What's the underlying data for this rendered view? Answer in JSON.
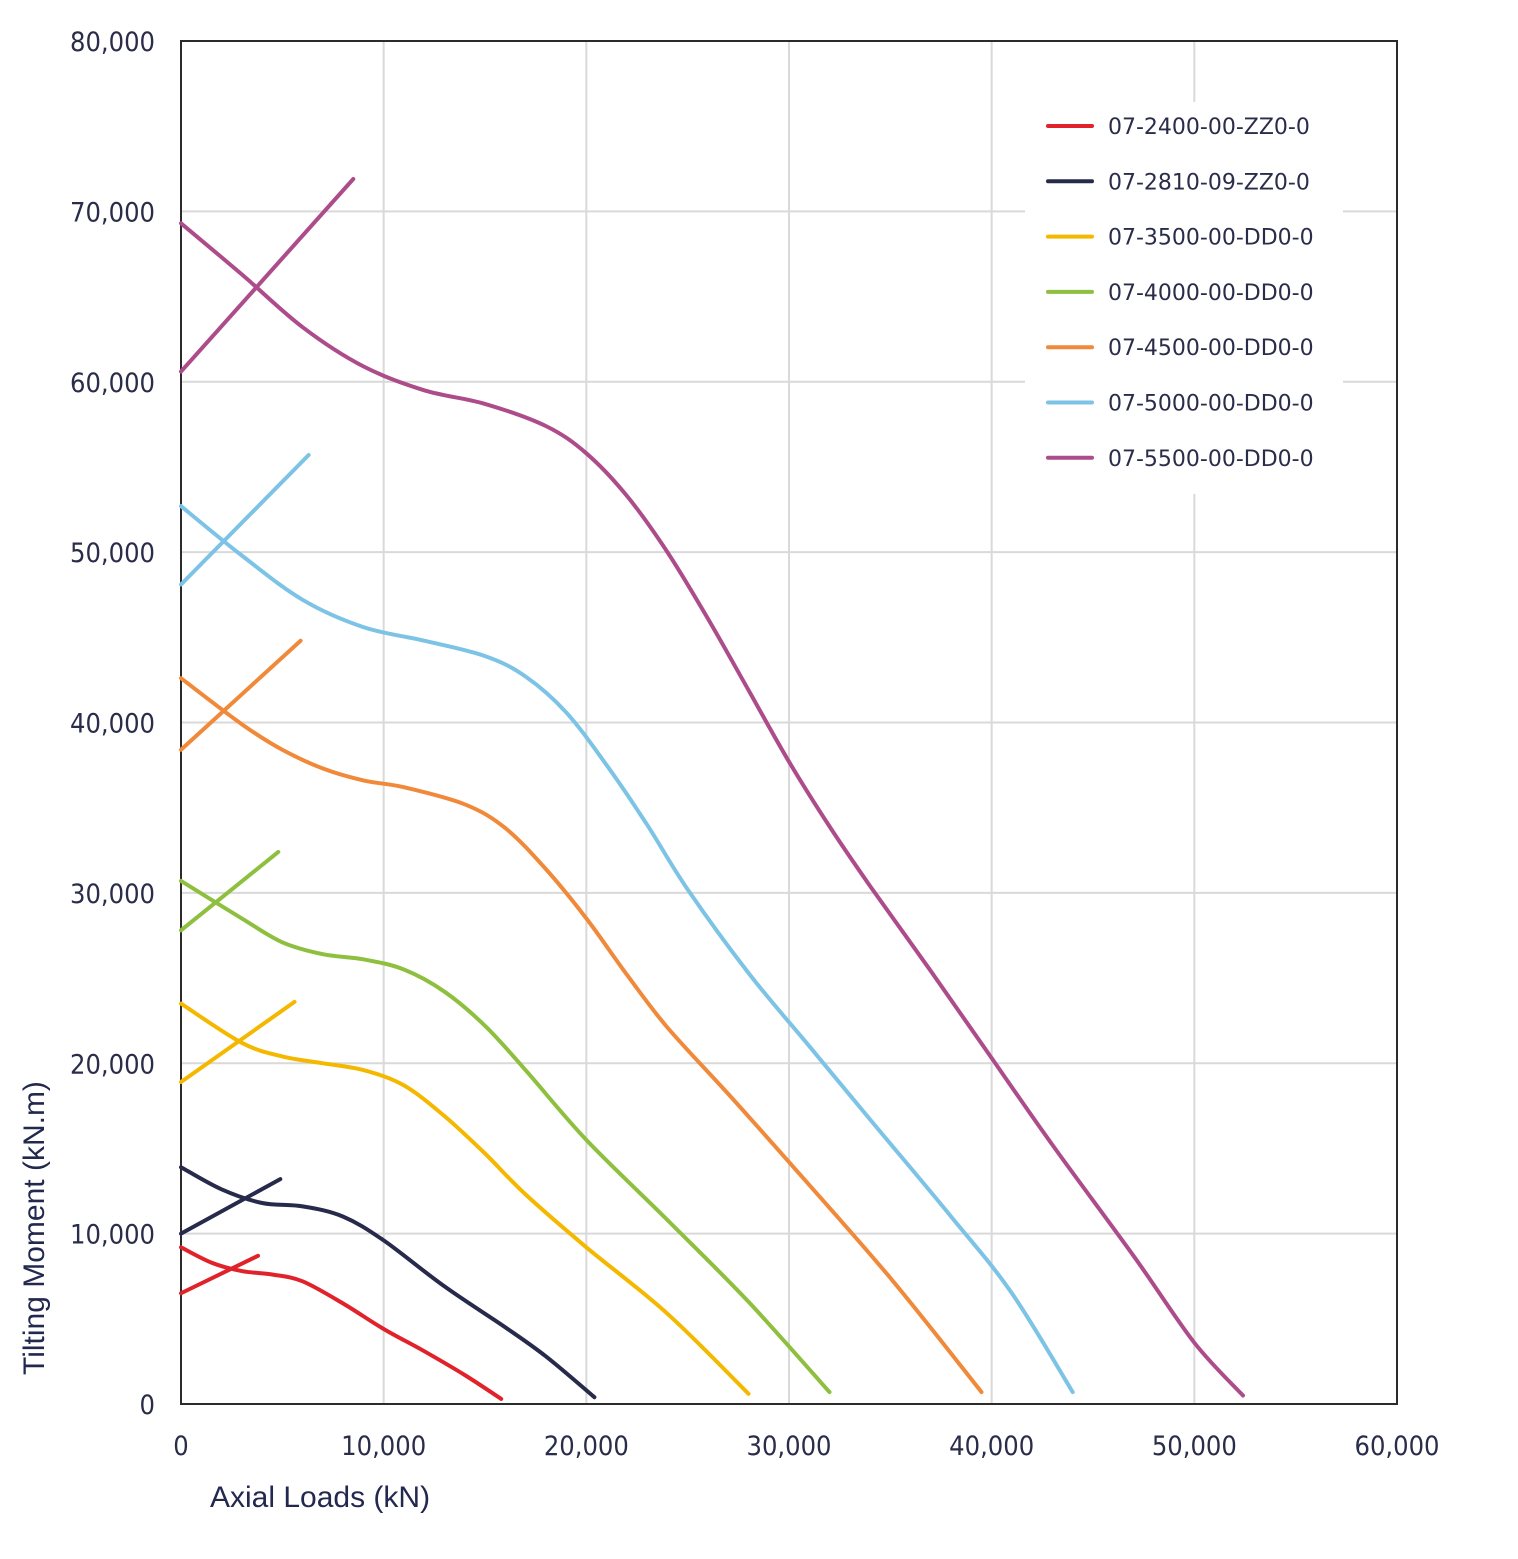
{
  "chart_data": {
    "type": "line",
    "xlabel": "Axial Loads (kN)",
    "ylabel": "Tilting Moment (kN.m)",
    "xlim": [
      0,
      60000
    ],
    "ylim": [
      0,
      80000
    ],
    "xticks": [
      0,
      10000,
      20000,
      30000,
      40000,
      50000,
      60000
    ],
    "yticks": [
      0,
      10000,
      20000,
      30000,
      40000,
      50000,
      60000,
      70000,
      80000
    ],
    "xtick_labels": [
      "0",
      "10,000",
      "20,000",
      "30,000",
      "40,000",
      "50,000",
      "60,000"
    ],
    "ytick_labels": [
      "0",
      "10,000",
      "20,000",
      "30,000",
      "40,000",
      "50,000",
      "60,000",
      "70,000",
      "80,000"
    ],
    "grid": true,
    "legend_position": "top-right",
    "series": [
      {
        "name": "07-2400-00-ZZ0-0",
        "color": "#e0232a",
        "curve": [
          [
            0,
            9200
          ],
          [
            1500,
            8300
          ],
          [
            3000,
            7800
          ],
          [
            4500,
            7600
          ],
          [
            6000,
            7200
          ],
          [
            8000,
            5900
          ],
          [
            10000,
            4400
          ],
          [
            12000,
            3100
          ],
          [
            14000,
            1700
          ],
          [
            15800,
            300
          ]
        ],
        "line": [
          [
            0,
            6500
          ],
          [
            3800,
            8700
          ]
        ]
      },
      {
        "name": "07-2810-09-ZZ0-0",
        "color": "#272a4a",
        "curve": [
          [
            0,
            13900
          ],
          [
            2000,
            12600
          ],
          [
            4000,
            11800
          ],
          [
            6000,
            11600
          ],
          [
            8000,
            11000
          ],
          [
            10000,
            9600
          ],
          [
            13000,
            6900
          ],
          [
            16000,
            4500
          ],
          [
            18000,
            2800
          ],
          [
            20400,
            400
          ]
        ],
        "line": [
          [
            0,
            10000
          ],
          [
            4900,
            13200
          ]
        ]
      },
      {
        "name": "07-3500-00-DD0-0",
        "color": "#f5b800",
        "curve": [
          [
            0,
            23500
          ],
          [
            3000,
            21200
          ],
          [
            5000,
            20400
          ],
          [
            7000,
            20000
          ],
          [
            9000,
            19600
          ],
          [
            11000,
            18700
          ],
          [
            13000,
            16900
          ],
          [
            15000,
            14700
          ],
          [
            17000,
            12300
          ],
          [
            20000,
            9200
          ],
          [
            24000,
            5300
          ],
          [
            28000,
            600
          ]
        ],
        "line": [
          [
            0,
            18900
          ],
          [
            5600,
            23600
          ]
        ]
      },
      {
        "name": "07-4000-00-DD0-0",
        "color": "#8ebf3f",
        "curve": [
          [
            0,
            30700
          ],
          [
            3000,
            28500
          ],
          [
            5000,
            27100
          ],
          [
            7000,
            26400
          ],
          [
            9000,
            26100
          ],
          [
            11000,
            25500
          ],
          [
            13000,
            24200
          ],
          [
            15000,
            22200
          ],
          [
            17000,
            19600
          ],
          [
            20000,
            15500
          ],
          [
            24000,
            10800
          ],
          [
            28000,
            6000
          ],
          [
            32000,
            700
          ]
        ],
        "line": [
          [
            0,
            27800
          ],
          [
            4800,
            32400
          ]
        ]
      },
      {
        "name": "07-4500-00-DD0-0",
        "color": "#f08a3a",
        "curve": [
          [
            0,
            42600
          ],
          [
            3000,
            39900
          ],
          [
            5000,
            38400
          ],
          [
            7000,
            37300
          ],
          [
            9000,
            36600
          ],
          [
            11000,
            36200
          ],
          [
            14000,
            35200
          ],
          [
            16000,
            33800
          ],
          [
            18000,
            31400
          ],
          [
            20000,
            28500
          ],
          [
            22000,
            25200
          ],
          [
            24000,
            22100
          ],
          [
            27000,
            18200
          ],
          [
            30000,
            14200
          ],
          [
            35000,
            7400
          ],
          [
            39500,
            700
          ]
        ],
        "line": [
          [
            0,
            38400
          ],
          [
            5900,
            44800
          ]
        ]
      },
      {
        "name": "07-5000-00-DD0-0",
        "color": "#7cc3e6",
        "curve": [
          [
            0,
            52700
          ],
          [
            3000,
            49800
          ],
          [
            6000,
            47200
          ],
          [
            9000,
            45600
          ],
          [
            12000,
            44800
          ],
          [
            15000,
            43900
          ],
          [
            17000,
            42700
          ],
          [
            19000,
            40600
          ],
          [
            21000,
            37500
          ],
          [
            23000,
            34000
          ],
          [
            25000,
            30200
          ],
          [
            28000,
            25300
          ],
          [
            31000,
            21000
          ],
          [
            34000,
            16700
          ],
          [
            38000,
            11000
          ],
          [
            41000,
            6500
          ],
          [
            44000,
            700
          ]
        ],
        "line": [
          [
            0,
            48100
          ],
          [
            6300,
            55700
          ]
        ]
      },
      {
        "name": "07-5500-00-DD0-0",
        "color": "#ad4c8a",
        "curve": [
          [
            0,
            69300
          ],
          [
            3000,
            66300
          ],
          [
            6000,
            63200
          ],
          [
            9000,
            60900
          ],
          [
            12000,
            59500
          ],
          [
            15000,
            58700
          ],
          [
            18000,
            57400
          ],
          [
            20000,
            55800
          ],
          [
            22000,
            53300
          ],
          [
            24000,
            50000
          ],
          [
            26000,
            46100
          ],
          [
            28000,
            41900
          ],
          [
            30000,
            37700
          ],
          [
            32000,
            33900
          ],
          [
            34000,
            30400
          ],
          [
            37000,
            25400
          ],
          [
            40000,
            20300
          ],
          [
            43000,
            15200
          ],
          [
            47000,
            8700
          ],
          [
            50000,
            3600
          ],
          [
            52400,
            500
          ]
        ],
        "line": [
          [
            0,
            60600
          ],
          [
            8500,
            71900
          ]
        ]
      }
    ]
  }
}
